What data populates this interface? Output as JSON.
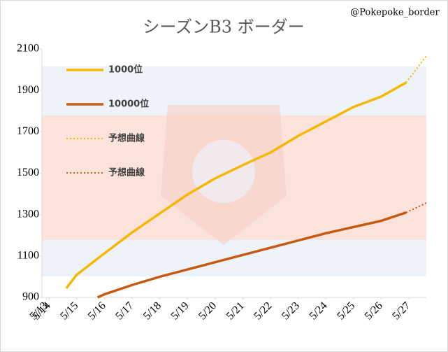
{
  "chart_data": {
    "type": "line",
    "title": "シーズンB3 ボーダー",
    "annotation": "@Pokepoke_border",
    "xlim": [
      13.74,
      27.63
    ],
    "xticks": [
      {
        "value": 13.9,
        "label": "5/13"
      },
      {
        "value": 14,
        "label": "5/14"
      },
      {
        "value": 15,
        "label": "5/15"
      },
      {
        "value": 16,
        "label": "5/16"
      },
      {
        "value": 17,
        "label": "5/17"
      },
      {
        "value": 18,
        "label": "5/18"
      },
      {
        "value": 19,
        "label": "5/19"
      },
      {
        "value": 20,
        "label": "5/20"
      },
      {
        "value": 21,
        "label": "5/21"
      },
      {
        "value": 22,
        "label": "5/22"
      },
      {
        "value": 23,
        "label": "5/23"
      },
      {
        "value": 24,
        "label": "5/24"
      },
      {
        "value": 25,
        "label": "5/25"
      },
      {
        "value": 26,
        "label": "5/26"
      },
      {
        "value": 27,
        "label": "5/27"
      }
    ],
    "ylim": [
      900,
      2100
    ],
    "yticks": [
      900,
      1100,
      1300,
      1500,
      1700,
      1900,
      2100
    ],
    "series": [
      {
        "name": "1000位",
        "color": "#f5b800",
        "style": "solid",
        "x": [
          14.62,
          15,
          16,
          17,
          18,
          19,
          20,
          21,
          22,
          23,
          24,
          25,
          26,
          26.9
        ],
        "values": [
          944,
          1010,
          1113,
          1214,
          1306,
          1397,
          1475,
          1539,
          1600,
          1680,
          1750,
          1820,
          1870,
          1938
        ]
      },
      {
        "name": "10000位",
        "color": "#c55a11",
        "style": "solid",
        "x": [
          15.75,
          16,
          17,
          18,
          19,
          20,
          21,
          22,
          23,
          24,
          25,
          26,
          26.9
        ],
        "values": [
          900,
          915,
          960,
          1000,
          1035,
          1070,
          1105,
          1140,
          1175,
          1210,
          1240,
          1270,
          1310
        ]
      },
      {
        "name": "予想曲線",
        "color": "#f5b800",
        "style": "dotted",
        "x": [
          26.9,
          27.63
        ],
        "values": [
          1938,
          2066
        ]
      },
      {
        "name": "予想曲線",
        "color": "#c55a11",
        "style": "dotted",
        "x": [
          26.9,
          27.63
        ],
        "values": [
          1310,
          1356
        ]
      }
    ]
  }
}
